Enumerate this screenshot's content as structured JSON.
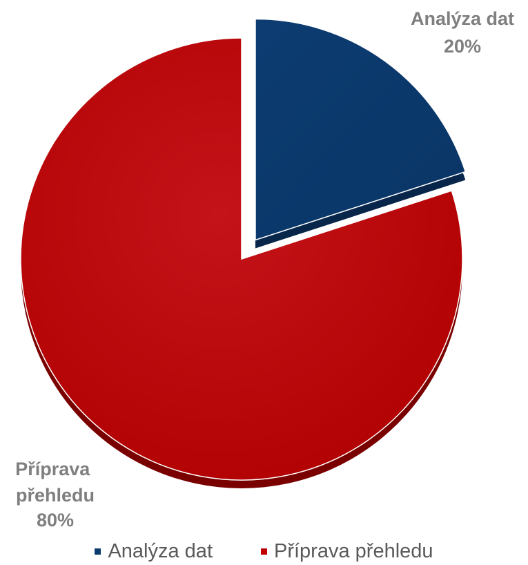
{
  "chart_data": {
    "type": "pie",
    "title": "",
    "exploded_slice": "Analýza dat",
    "slices": [
      {
        "label": "Analýza dat",
        "value": 20,
        "value_label": "20%",
        "color": "#0b3a6e"
      },
      {
        "label": "Příprava přehledu",
        "value": 80,
        "value_label": "80%",
        "color": "#c00000"
      }
    ],
    "legend": {
      "placement": "bottom",
      "items": [
        "Analýza dat",
        "Příprava přehledu"
      ]
    }
  }
}
